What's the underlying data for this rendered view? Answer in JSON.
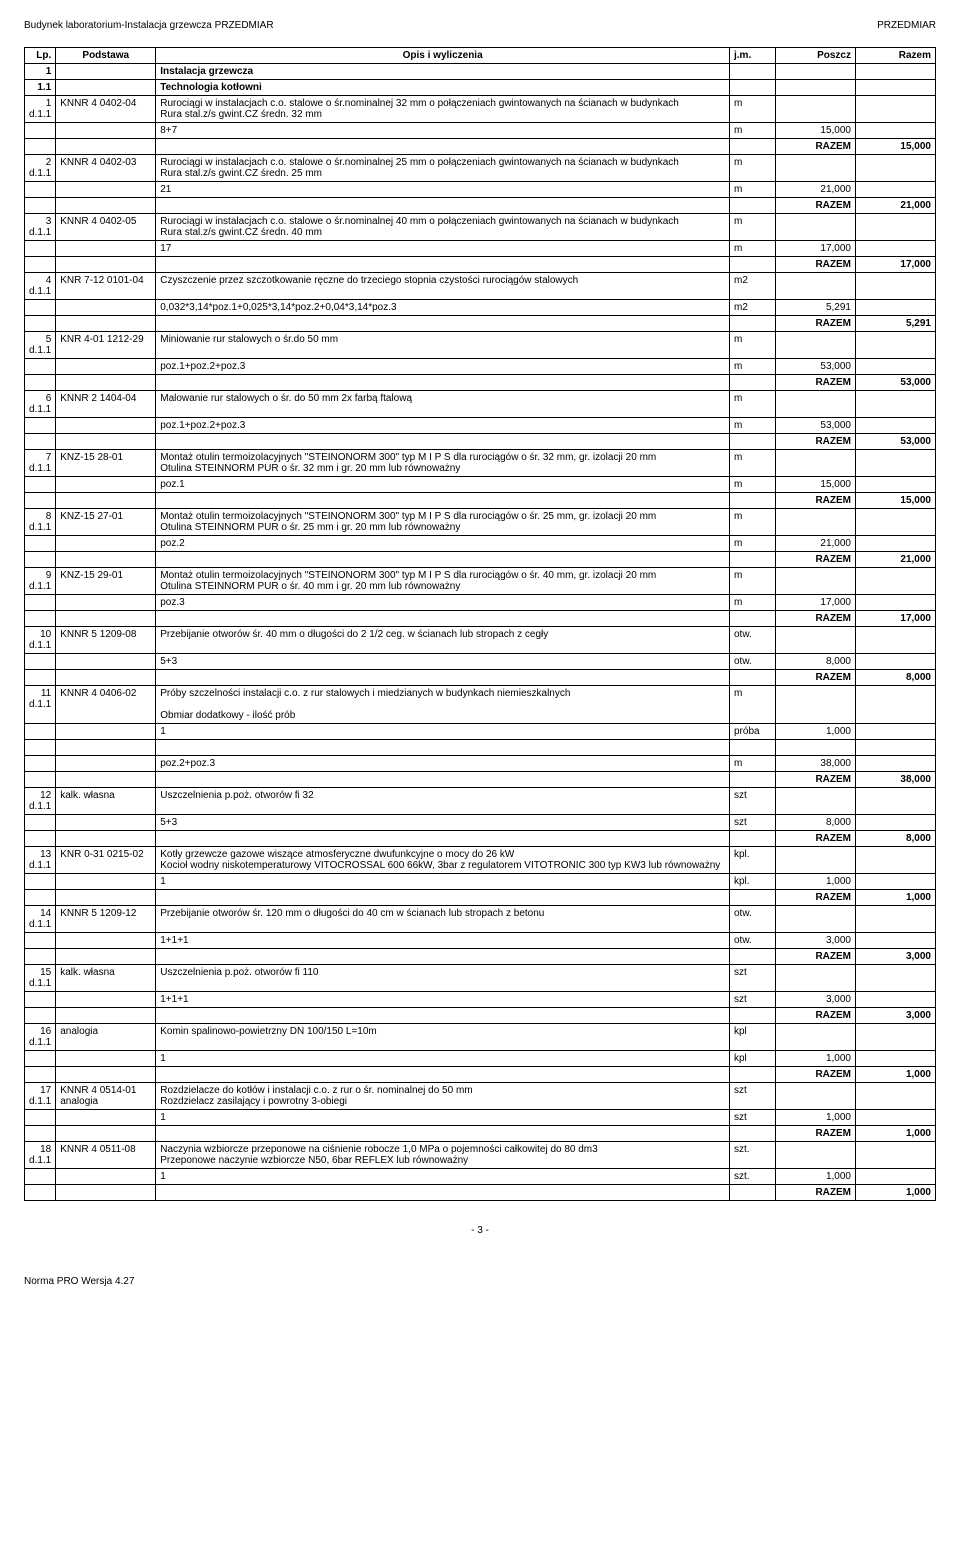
{
  "header": {
    "left": "Budynek laboratorium-Instalacja grzewcza PRZEDMIAR",
    "right": "PRZEDMIAR"
  },
  "columns": {
    "lp": "Lp.",
    "podstawa": "Podstawa",
    "opis": "Opis i wyliczenia",
    "jm": "j.m.",
    "poszcz": "Poszcz",
    "razem": "Razem"
  },
  "razem_label": "RAZEM",
  "rows": [
    {
      "type": "section",
      "lp": "1",
      "opis": "Instalacja grzewcza"
    },
    {
      "type": "section",
      "lp": "1.1",
      "opis": "Technologia kotłowni"
    },
    {
      "type": "item",
      "lp": "1",
      "pod": "KNNR 4 0402-04",
      "d": "d.1.1",
      "opis": "Rurociągi w instalacjach c.o. stalowe o śr.nominalnej 32 mm o połączeniach gwintowanych na ścianach w budynkach\nRura stal.z/s gwint.CZ średn. 32 mm",
      "jm": "m"
    },
    {
      "type": "calc",
      "opis": "8+7",
      "jm": "m",
      "poszcz": "15,000"
    },
    {
      "type": "razem",
      "razem": "15,000",
      "poszcz": "15,000"
    },
    {
      "type": "item",
      "lp": "2",
      "pod": "KNNR 4 0402-03",
      "d": "d.1.1",
      "opis": "Rurociągi w instalacjach c.o. stalowe o śr.nominalnej 25 mm o połączeniach gwintowanych na ścianach w budynkach\nRura stal.z/s gwint.CZ średn. 25 mm",
      "jm": "m"
    },
    {
      "type": "calc",
      "opis": "21",
      "jm": "m",
      "poszcz": "21,000"
    },
    {
      "type": "razem",
      "razem": "21,000",
      "poszcz": "21,000"
    },
    {
      "type": "item",
      "lp": "3",
      "pod": "KNNR 4 0402-05",
      "d": "d.1.1",
      "opis": "Rurociągi w instalacjach c.o. stalowe o śr.nominalnej 40 mm o połączeniach gwintowanych na ścianach w budynkach\nRura stal.z/s gwint.CZ średn. 40 mm",
      "jm": "m"
    },
    {
      "type": "calc",
      "opis": "17",
      "jm": "m",
      "poszcz": "17,000"
    },
    {
      "type": "razem",
      "razem": "17,000",
      "poszcz": "17,000"
    },
    {
      "type": "item",
      "lp": "4",
      "pod": "KNR 7-12 0101-04",
      "d": "d.1.1",
      "opis": "Czyszczenie przez szczotkowanie ręczne do trzeciego stopnia czystości rurociągów stalowych",
      "jm": "m2"
    },
    {
      "type": "calc",
      "opis": "0,032*3,14*poz.1+0,025*3,14*poz.2+0,04*3,14*poz.3",
      "jm": "m2",
      "poszcz": "5,291"
    },
    {
      "type": "razem",
      "razem": "5,291",
      "poszcz": "5,291"
    },
    {
      "type": "item",
      "lp": "5",
      "pod": "KNR 4-01 1212-29",
      "d": "d.1.1",
      "opis": "Miniowanie rur stalowych o śr.do 50 mm",
      "jm": "m"
    },
    {
      "type": "calc",
      "opis": "poz.1+poz.2+poz.3",
      "jm": "m",
      "poszcz": "53,000"
    },
    {
      "type": "razem",
      "razem": "53,000",
      "poszcz": "53,000"
    },
    {
      "type": "item",
      "lp": "6",
      "pod": "KNNR 2 1404-04",
      "d": "d.1.1",
      "opis": "Malowanie rur stalowych o śr. do 50 mm 2x farbą ftalową",
      "jm": "m"
    },
    {
      "type": "calc",
      "opis": "poz.1+poz.2+poz.3",
      "jm": "m",
      "poszcz": "53,000"
    },
    {
      "type": "razem",
      "razem": "53,000",
      "poszcz": "53,000"
    },
    {
      "type": "item",
      "lp": "7",
      "pod": "KNZ-15 28-01",
      "d": "d.1.1",
      "opis": "Montaż otulin termoizolacyjnych \"STEINONORM 300\" typ M I P S dla rurociągów o śr. 32 mm, gr. izolacji 20 mm\nOtulina STEINNORM PUR o śr. 32 mm i gr. 20 mm lub równoważny",
      "jm": "m"
    },
    {
      "type": "calc",
      "opis": "poz.1",
      "jm": "m",
      "poszcz": "15,000"
    },
    {
      "type": "razem",
      "razem": "15,000",
      "poszcz": "15,000"
    },
    {
      "type": "item",
      "lp": "8",
      "pod": "KNZ-15 27-01",
      "d": "d.1.1",
      "opis": "Montaż otulin termoizolacyjnych \"STEINONORM 300\" typ M I P S dla rurociągów o śr. 25 mm, gr. izolacji 20 mm\nOtulina STEINNORM PUR o śr. 25 mm i gr. 20 mm lub równoważny",
      "jm": "m"
    },
    {
      "type": "calc",
      "opis": "poz.2",
      "jm": "m",
      "poszcz": "21,000"
    },
    {
      "type": "razem",
      "razem": "21,000",
      "poszcz": "21,000"
    },
    {
      "type": "item",
      "lp": "9",
      "pod": "KNZ-15 29-01",
      "d": "d.1.1",
      "opis": "Montaż otulin termoizolacyjnych \"STEINONORM 300\" typ M I P S dla rurociągów o śr. 40 mm, gr. izolacji 20 mm\nOtulina STEINNORM PUR o śr. 40 mm i gr. 20 mm lub równoważny",
      "jm": "m"
    },
    {
      "type": "calc",
      "opis": "poz.3",
      "jm": "m",
      "poszcz": "17,000"
    },
    {
      "type": "razem",
      "razem": "17,000",
      "poszcz": "17,000"
    },
    {
      "type": "item",
      "lp": "10",
      "pod": "KNNR 5 1209-08",
      "d": "d.1.1",
      "opis": "Przebijanie otworów śr. 40 mm o długości do 2 1/2 ceg. w ścianach lub stropach z cegły",
      "jm": "otw."
    },
    {
      "type": "calc",
      "opis": "5+3",
      "jm": "otw.",
      "poszcz": "8,000"
    },
    {
      "type": "razem",
      "razem": "8,000",
      "poszcz": "8,000"
    },
    {
      "type": "item",
      "lp": "11",
      "pod": "KNNR 4 0406-02",
      "d": "d.1.1",
      "opis": "Próby szczelności instalacji c.o. z rur stalowych i miedzianych w budynkach niemieszkalnych\n\nObmiar dodatkowy - ilość prób",
      "jm": "m"
    },
    {
      "type": "calc",
      "opis": "1",
      "jm": "próba",
      "poszcz": "1,000"
    },
    {
      "type": "blank"
    },
    {
      "type": "calc",
      "opis": "poz.2+poz.3",
      "jm": "m",
      "poszcz": "38,000"
    },
    {
      "type": "razem",
      "razem": "38,000",
      "poszcz": "38,000"
    },
    {
      "type": "item",
      "lp": "12",
      "pod": "kalk. własna",
      "d": "d.1.1",
      "opis": "Uszczelnienia p.poż. otworów fi 32",
      "jm": "szt"
    },
    {
      "type": "calc",
      "opis": "5+3",
      "jm": "szt",
      "poszcz": "8,000"
    },
    {
      "type": "razem",
      "razem": "8,000",
      "poszcz": "8,000"
    },
    {
      "type": "item",
      "lp": "13",
      "pod": "KNR 0-31 0215-02",
      "d": "d.1.1",
      "opis": "Kotły grzewcze gazowe wiszące atmosferyczne dwufunkcyjne o mocy do 26 kW\nKocioł wodny niskotemperaturowy   VITOCROSSAL 600 66kW, 3bar z regulatorem VITOTRONIC 300 typ KW3 lub równoważny",
      "jm": "kpl."
    },
    {
      "type": "calc",
      "opis": "1",
      "jm": "kpl.",
      "poszcz": "1,000"
    },
    {
      "type": "razem",
      "razem": "1,000",
      "poszcz": "1,000"
    },
    {
      "type": "item",
      "lp": "14",
      "pod": "KNNR 5 1209-12",
      "d": "d.1.1",
      "opis": "Przebijanie otworów śr. 120 mm o długości do 40 cm w ścianach lub stropach z betonu",
      "jm": "otw."
    },
    {
      "type": "calc",
      "opis": "1+1+1",
      "jm": "otw.",
      "poszcz": "3,000"
    },
    {
      "type": "razem",
      "razem": "3,000",
      "poszcz": "3,000"
    },
    {
      "type": "item",
      "lp": "15",
      "pod": "kalk. własna",
      "d": "d.1.1",
      "opis": "Uszczelnienia p.poż. otworów fi 110",
      "jm": "szt"
    },
    {
      "type": "calc",
      "opis": "1+1+1",
      "jm": "szt",
      "poszcz": "3,000"
    },
    {
      "type": "razem",
      "razem": "3,000",
      "poszcz": "3,000"
    },
    {
      "type": "item",
      "lp": "16",
      "pod": "analogia",
      "d": "d.1.1",
      "opis": "Komin spalinowo-powietrzny DN 100/150 L=10m",
      "jm": "kpl"
    },
    {
      "type": "calc",
      "opis": "1",
      "jm": "kpl",
      "poszcz": "1,000"
    },
    {
      "type": "razem",
      "razem": "1,000",
      "poszcz": "1,000"
    },
    {
      "type": "item",
      "lp": "17",
      "pod": "KNNR 4 0514-01\nanalogia",
      "d": "d.1.1",
      "opis": "Rozdzielacze do kotłów i instalacji c.o. z rur o śr. nominalnej do 50 mm\nRozdzielacz zasilający i powrotny 3-obiegi",
      "jm": "szt"
    },
    {
      "type": "calc",
      "opis": "1",
      "jm": "szt",
      "poszcz": "1,000"
    },
    {
      "type": "razem",
      "razem": "1,000",
      "poszcz": "1,000"
    },
    {
      "type": "item",
      "lp": "18",
      "pod": "KNNR 4 0511-08",
      "d": "d.1.1",
      "opis": "Naczynia wzbiorcze przeponowe na ciśnienie robocze 1,0 MPa o pojemności całkowitej do 80 dm3\nPrzeponowe naczynie wzbiorcze N50, 6bar REFLEX lub równoważny",
      "jm": "szt."
    },
    {
      "type": "calc",
      "opis": "1",
      "jm": "szt.",
      "poszcz": "1,000"
    },
    {
      "type": "razem",
      "razem": "1,000",
      "poszcz": "1,000"
    }
  ],
  "page_num": "- 3 -",
  "footer": "Norma PRO Wersja 4.27"
}
